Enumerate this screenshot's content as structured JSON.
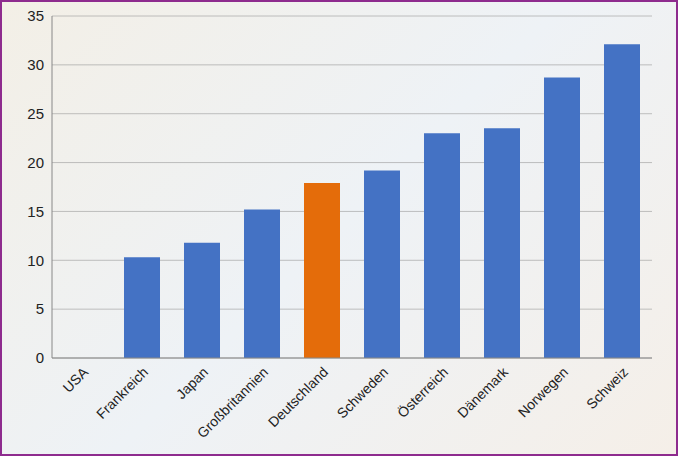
{
  "chart_data": {
    "type": "bar",
    "categories": [
      "USA",
      "Frankreich",
      "Japan",
      "Großbritannien",
      "Deutschland",
      "Schweden",
      "Österreich",
      "Dänemark",
      "Norwegen",
      "Schweiz"
    ],
    "values": [
      0,
      10.3,
      11.8,
      15.2,
      17.9,
      19.2,
      23,
      23.5,
      28.7,
      32.1
    ],
    "colors": [
      "#4472c4",
      "#4472c4",
      "#4472c4",
      "#4472c4",
      "#e46c0a",
      "#4472c4",
      "#4472c4",
      "#4472c4",
      "#4472c4",
      "#4472c4"
    ],
    "ylim": [
      0,
      35
    ],
    "yticks": [
      0,
      5,
      10,
      15,
      20,
      25,
      30,
      35
    ],
    "grid": true
  }
}
